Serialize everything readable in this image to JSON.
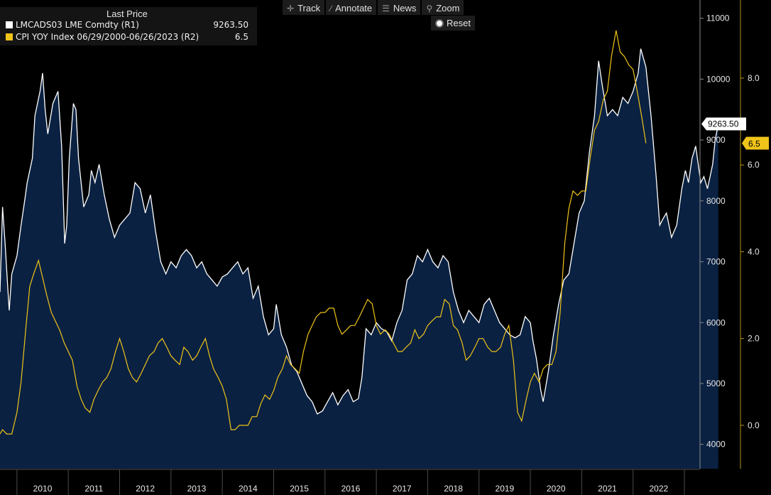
{
  "legend": {
    "header": "Last Price",
    "series": [
      {
        "label": "LMCADS03 LME Comdty  (R1)",
        "value": "9263.50",
        "color": "#ffffff"
      },
      {
        "label": "CPI YOY Index 06/29/2000-06/26/2023  (R2)",
        "value": "6.5",
        "color": "#f0c419"
      }
    ]
  },
  "toolbar": {
    "track": "Track",
    "track_icon": "crosshair-icon",
    "annotate": "Annotate",
    "annotate_icon": "pencil-icon",
    "news": "News",
    "news_icon": "news-icon",
    "zoom": "Zoom",
    "zoom_icon": "magnifier-icon",
    "reset": "Reset"
  },
  "chart_data": {
    "type": "area",
    "x_ticks": [
      "2010",
      "2011",
      "2012",
      "2013",
      "2014",
      "2015",
      "2016",
      "2017",
      "2018",
      "2019",
      "2020",
      "2021",
      "2022"
    ],
    "x_range": [
      2009.67,
      2023.0
    ],
    "copper": {
      "axis": "R1",
      "ylim": [
        3600,
        11300
      ],
      "ticks": [
        "11000",
        "10000",
        "9000",
        "8000",
        "7000",
        "6000",
        "5000",
        "4000"
      ],
      "last": "9263.50",
      "fill_color": "#0a2142",
      "line_color": "#ffffff",
      "points": [
        [
          2009.67,
          6500
        ],
        [
          2009.72,
          7900
        ],
        [
          2009.77,
          7300
        ],
        [
          2009.82,
          6600
        ],
        [
          2009.85,
          6200
        ],
        [
          2009.9,
          6800
        ],
        [
          2010.0,
          7100
        ],
        [
          2010.08,
          7600
        ],
        [
          2010.15,
          8000
        ],
        [
          2010.2,
          8300
        ],
        [
          2010.3,
          8700
        ],
        [
          2010.35,
          9400
        ],
        [
          2010.45,
          9800
        ],
        [
          2010.5,
          10100
        ],
        [
          2010.55,
          9500
        ],
        [
          2010.6,
          9100
        ],
        [
          2010.7,
          9600
        ],
        [
          2010.8,
          9800
        ],
        [
          2010.87,
          8900
        ],
        [
          2010.93,
          7300
        ],
        [
          2010.97,
          7600
        ],
        [
          2011.02,
          8700
        ],
        [
          2011.1,
          9600
        ],
        [
          2011.15,
          9500
        ],
        [
          2011.2,
          8700
        ],
        [
          2011.3,
          7900
        ],
        [
          2011.4,
          8100
        ],
        [
          2011.45,
          8500
        ],
        [
          2011.52,
          8300
        ],
        [
          2011.6,
          8600
        ],
        [
          2011.7,
          8100
        ],
        [
          2011.8,
          7700
        ],
        [
          2011.9,
          7400
        ],
        [
          2012.0,
          7600
        ],
        [
          2012.1,
          7700
        ],
        [
          2012.2,
          7800
        ],
        [
          2012.3,
          8300
        ],
        [
          2012.4,
          8200
        ],
        [
          2012.5,
          7800
        ],
        [
          2012.6,
          8100
        ],
        [
          2012.7,
          7500
        ],
        [
          2012.8,
          7000
        ],
        [
          2012.9,
          6800
        ],
        [
          2013.0,
          7000
        ],
        [
          2013.1,
          6900
        ],
        [
          2013.2,
          7100
        ],
        [
          2013.3,
          7200
        ],
        [
          2013.4,
          7100
        ],
        [
          2013.5,
          6900
        ],
        [
          2013.6,
          7000
        ],
        [
          2013.7,
          6800
        ],
        [
          2013.8,
          6700
        ],
        [
          2013.9,
          6600
        ],
        [
          2014.0,
          6750
        ],
        [
          2014.1,
          6800
        ],
        [
          2014.2,
          6900
        ],
        [
          2014.3,
          7000
        ],
        [
          2014.4,
          6800
        ],
        [
          2014.5,
          6900
        ],
        [
          2014.6,
          6400
        ],
        [
          2014.7,
          6600
        ],
        [
          2014.8,
          6100
        ],
        [
          2014.9,
          5800
        ],
        [
          2015.0,
          5900
        ],
        [
          2015.05,
          6300
        ],
        [
          2015.15,
          5800
        ],
        [
          2015.25,
          5600
        ],
        [
          2015.35,
          5300
        ],
        [
          2015.45,
          5200
        ],
        [
          2015.55,
          5000
        ],
        [
          2015.65,
          4800
        ],
        [
          2015.75,
          4700
        ],
        [
          2015.85,
          4500
        ],
        [
          2015.95,
          4550
        ],
        [
          2016.05,
          4700
        ],
        [
          2016.15,
          4850
        ],
        [
          2016.25,
          4650
        ],
        [
          2016.35,
          4800
        ],
        [
          2016.45,
          4900
        ],
        [
          2016.55,
          4700
        ],
        [
          2016.65,
          4750
        ],
        [
          2016.72,
          5100
        ],
        [
          2016.8,
          5900
        ],
        [
          2016.9,
          5800
        ],
        [
          2017.0,
          6000
        ],
        [
          2017.1,
          5900
        ],
        [
          2017.2,
          5850
        ],
        [
          2017.3,
          5700
        ],
        [
          2017.4,
          6000
        ],
        [
          2017.5,
          6200
        ],
        [
          2017.6,
          6700
        ],
        [
          2017.7,
          6800
        ],
        [
          2017.8,
          7100
        ],
        [
          2017.9,
          7000
        ],
        [
          2018.0,
          7200
        ],
        [
          2018.1,
          7000
        ],
        [
          2018.2,
          6900
        ],
        [
          2018.3,
          7100
        ],
        [
          2018.4,
          7000
        ],
        [
          2018.5,
          6500
        ],
        [
          2018.6,
          6200
        ],
        [
          2018.7,
          6000
        ],
        [
          2018.8,
          6200
        ],
        [
          2018.9,
          6100
        ],
        [
          2019.0,
          6000
        ],
        [
          2019.1,
          6300
        ],
        [
          2019.2,
          6400
        ],
        [
          2019.3,
          6200
        ],
        [
          2019.4,
          6000
        ],
        [
          2019.5,
          5900
        ],
        [
          2019.6,
          5800
        ],
        [
          2019.7,
          5750
        ],
        [
          2019.8,
          5800
        ],
        [
          2019.9,
          6100
        ],
        [
          2020.0,
          6000
        ],
        [
          2020.05,
          5700
        ],
        [
          2020.12,
          5400
        ],
        [
          2020.2,
          4900
        ],
        [
          2020.25,
          4700
        ],
        [
          2020.35,
          5200
        ],
        [
          2020.45,
          5800
        ],
        [
          2020.55,
          6300
        ],
        [
          2020.65,
          6700
        ],
        [
          2020.75,
          6800
        ],
        [
          2020.85,
          7300
        ],
        [
          2020.95,
          7800
        ],
        [
          2021.05,
          8000
        ],
        [
          2021.15,
          8800
        ],
        [
          2021.25,
          9400
        ],
        [
          2021.33,
          10300
        ],
        [
          2021.4,
          9900
        ],
        [
          2021.5,
          9400
        ],
        [
          2021.6,
          9500
        ],
        [
          2021.7,
          9400
        ],
        [
          2021.8,
          9700
        ],
        [
          2021.9,
          9600
        ],
        [
          2022.0,
          9800
        ],
        [
          2022.1,
          10100
        ],
        [
          2022.15,
          10500
        ],
        [
          2022.25,
          10200
        ],
        [
          2022.35,
          9400
        ],
        [
          2022.45,
          8400
        ],
        [
          2022.52,
          7600
        ],
        [
          2022.58,
          7700
        ],
        [
          2022.65,
          7800
        ],
        [
          2022.75,
          7400
        ],
        [
          2022.85,
          7600
        ],
        [
          2022.95,
          8200
        ],
        [
          2023.02,
          8500
        ],
        [
          2023.08,
          8300
        ],
        [
          2023.15,
          8700
        ],
        [
          2023.22,
          8900
        ],
        [
          2023.27,
          8600
        ],
        [
          2023.32,
          8300
        ],
        [
          2023.38,
          8400
        ],
        [
          2023.45,
          8200
        ],
        [
          2023.5,
          8400
        ],
        [
          2023.55,
          8600
        ],
        [
          2023.6,
          9000
        ],
        [
          2023.66,
          9263.5
        ]
      ]
    },
    "cpi": {
      "axis": "R2",
      "ylim": [
        -1.0,
        9.8
      ],
      "ticks": [
        "8.0",
        "6.0",
        "4.0",
        "2.0",
        "0.0"
      ],
      "last": "6.5",
      "line_color": "#f0c419",
      "points": [
        [
          2009.67,
          -0.2
        ],
        [
          2009.72,
          -0.1
        ],
        [
          2009.8,
          -0.2
        ],
        [
          2009.9,
          -0.2
        ],
        [
          2010.0,
          0.3
        ],
        [
          2010.08,
          1.0
        ],
        [
          2010.17,
          2.2
        ],
        [
          2010.25,
          3.2
        ],
        [
          2010.33,
          3.5
        ],
        [
          2010.42,
          3.8
        ],
        [
          2010.5,
          3.4
        ],
        [
          2010.58,
          3.0
        ],
        [
          2010.67,
          2.6
        ],
        [
          2010.75,
          2.4
        ],
        [
          2010.83,
          2.2
        ],
        [
          2010.92,
          1.9
        ],
        [
          2011.0,
          1.7
        ],
        [
          2011.08,
          1.5
        ],
        [
          2011.17,
          0.9
        ],
        [
          2011.25,
          0.6
        ],
        [
          2011.33,
          0.4
        ],
        [
          2011.42,
          0.3
        ],
        [
          2011.5,
          0.6
        ],
        [
          2011.58,
          0.8
        ],
        [
          2011.67,
          1.0
        ],
        [
          2011.75,
          1.1
        ],
        [
          2011.83,
          1.3
        ],
        [
          2011.92,
          1.7
        ],
        [
          2012.0,
          2.0
        ],
        [
          2012.08,
          1.7
        ],
        [
          2012.17,
          1.3
        ],
        [
          2012.25,
          1.1
        ],
        [
          2012.33,
          1.0
        ],
        [
          2012.42,
          1.2
        ],
        [
          2012.5,
          1.4
        ],
        [
          2012.58,
          1.6
        ],
        [
          2012.67,
          1.7
        ],
        [
          2012.75,
          1.9
        ],
        [
          2012.83,
          2.0
        ],
        [
          2012.92,
          1.8
        ],
        [
          2013.0,
          1.6
        ],
        [
          2013.08,
          1.5
        ],
        [
          2013.17,
          1.4
        ],
        [
          2013.25,
          1.8
        ],
        [
          2013.33,
          1.7
        ],
        [
          2013.42,
          1.5
        ],
        [
          2013.5,
          1.6
        ],
        [
          2013.58,
          1.8
        ],
        [
          2013.67,
          2.0
        ],
        [
          2013.75,
          1.6
        ],
        [
          2013.83,
          1.3
        ],
        [
          2013.92,
          1.1
        ],
        [
          2014.0,
          0.9
        ],
        [
          2014.08,
          0.6
        ],
        [
          2014.17,
          -0.1
        ],
        [
          2014.25,
          -0.1
        ],
        [
          2014.33,
          -0.0
        ],
        [
          2014.42,
          0.0
        ],
        [
          2014.5,
          -0.0
        ],
        [
          2014.58,
          0.2
        ],
        [
          2014.67,
          0.2
        ],
        [
          2014.75,
          0.5
        ],
        [
          2014.83,
          0.7
        ],
        [
          2014.92,
          0.6
        ],
        [
          2015.0,
          0.8
        ],
        [
          2015.08,
          1.1
        ],
        [
          2015.17,
          1.3
        ],
        [
          2015.25,
          1.6
        ],
        [
          2015.33,
          1.4
        ],
        [
          2015.42,
          1.3
        ],
        [
          2015.5,
          1.2
        ],
        [
          2015.58,
          1.7
        ],
        [
          2015.67,
          2.1
        ],
        [
          2015.75,
          2.3
        ],
        [
          2015.83,
          2.5
        ],
        [
          2015.92,
          2.6
        ],
        [
          2016.0,
          2.6
        ],
        [
          2016.08,
          2.7
        ],
        [
          2016.17,
          2.7
        ],
        [
          2016.25,
          2.3
        ],
        [
          2016.33,
          2.1
        ],
        [
          2016.42,
          2.2
        ],
        [
          2016.5,
          2.3
        ],
        [
          2016.58,
          2.3
        ],
        [
          2016.67,
          2.5
        ],
        [
          2016.75,
          2.7
        ],
        [
          2016.83,
          2.9
        ],
        [
          2016.92,
          2.8
        ],
        [
          2017.0,
          2.3
        ],
        [
          2017.08,
          2.1
        ],
        [
          2017.17,
          2.2
        ],
        [
          2017.25,
          2.1
        ],
        [
          2017.33,
          1.9
        ],
        [
          2017.42,
          1.7
        ],
        [
          2017.5,
          1.7
        ],
        [
          2017.58,
          1.8
        ],
        [
          2017.67,
          1.9
        ],
        [
          2017.75,
          2.2
        ],
        [
          2017.83,
          2.0
        ],
        [
          2017.92,
          2.1
        ],
        [
          2018.0,
          2.3
        ],
        [
          2018.08,
          2.4
        ],
        [
          2018.17,
          2.5
        ],
        [
          2018.25,
          2.5
        ],
        [
          2018.33,
          2.9
        ],
        [
          2018.42,
          2.8
        ],
        [
          2018.5,
          2.3
        ],
        [
          2018.58,
          2.2
        ],
        [
          2018.67,
          1.9
        ],
        [
          2018.75,
          1.5
        ],
        [
          2018.83,
          1.6
        ],
        [
          2018.92,
          1.8
        ],
        [
          2019.0,
          2.0
        ],
        [
          2019.08,
          2.0
        ],
        [
          2019.17,
          1.8
        ],
        [
          2019.25,
          1.7
        ],
        [
          2019.33,
          1.7
        ],
        [
          2019.42,
          1.8
        ],
        [
          2019.5,
          2.1
        ],
        [
          2019.58,
          2.3
        ],
        [
          2019.67,
          1.5
        ],
        [
          2019.75,
          0.3
        ],
        [
          2019.83,
          0.1
        ],
        [
          2019.92,
          0.6
        ],
        [
          2020.0,
          1.0
        ],
        [
          2020.08,
          1.2
        ],
        [
          2020.17,
          1.0
        ],
        [
          2020.25,
          1.3
        ],
        [
          2020.33,
          1.4
        ],
        [
          2020.42,
          1.4
        ],
        [
          2020.5,
          1.7
        ],
        [
          2020.58,
          2.6
        ],
        [
          2020.67,
          4.2
        ],
        [
          2020.75,
          5.0
        ],
        [
          2020.83,
          5.4
        ],
        [
          2020.92,
          5.3
        ],
        [
          2021.0,
          5.4
        ],
        [
          2021.08,
          5.4
        ],
        [
          2021.17,
          6.2
        ],
        [
          2021.25,
          6.8
        ],
        [
          2021.33,
          7.0
        ],
        [
          2021.42,
          7.5
        ],
        [
          2021.5,
          7.7
        ],
        [
          2021.58,
          8.5
        ],
        [
          2021.67,
          9.1
        ],
        [
          2021.75,
          8.6
        ],
        [
          2021.83,
          8.5
        ],
        [
          2021.92,
          8.3
        ],
        [
          2022.0,
          8.2
        ],
        [
          2022.08,
          7.7
        ],
        [
          2022.17,
          7.1
        ],
        [
          2022.25,
          6.5
        ]
      ]
    }
  }
}
